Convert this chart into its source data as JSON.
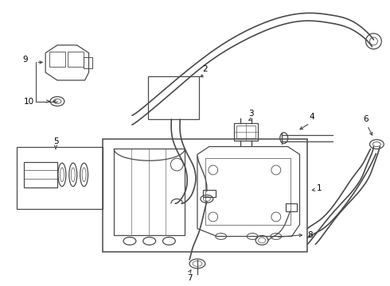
{
  "bg_color": "#ffffff",
  "line_color": "#4a4a4a",
  "label_color": "#000000",
  "fig_width": 4.9,
  "fig_height": 3.6
}
